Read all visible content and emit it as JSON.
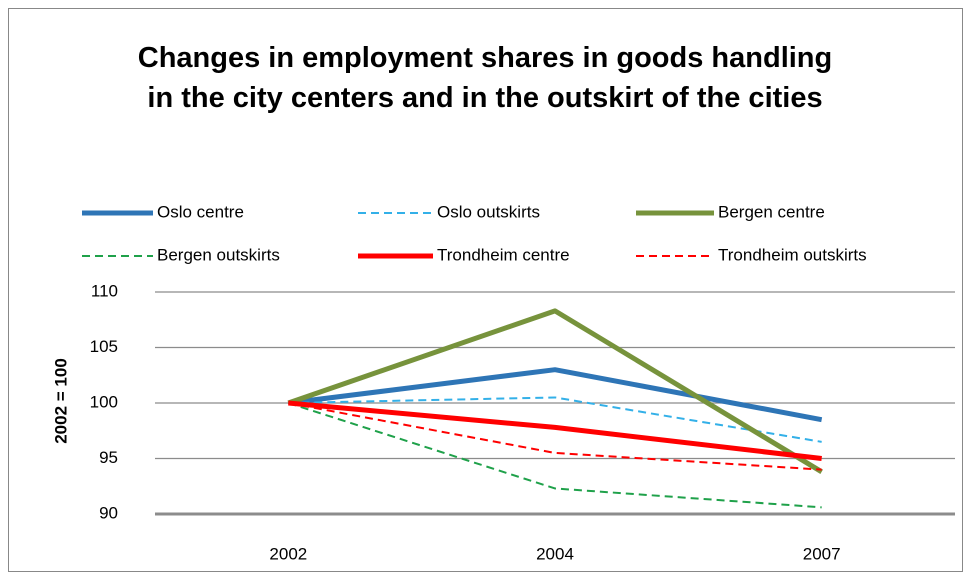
{
  "chart_data": {
    "type": "line",
    "title": "Changes in employment shares in goods handling in the city centers and in the outskirt of the cities",
    "y_label": "2002 = 100",
    "categories": [
      "2002",
      "2004",
      "2007"
    ],
    "series": [
      {
        "name": "Oslo centre",
        "color": "#2e75b6",
        "dash": false,
        "values": [
          100,
          103,
          98.5
        ]
      },
      {
        "name": "Oslo outskirts",
        "color": "#33b0e8",
        "dash": true,
        "values": [
          100,
          100.5,
          96.5
        ]
      },
      {
        "name": "Bergen centre",
        "color": "#77933c",
        "dash": false,
        "values": [
          100,
          108.3,
          93.8
        ]
      },
      {
        "name": "Bergen outskirts",
        "color": "#1fa14a",
        "dash": true,
        "values": [
          100,
          92.3,
          90.6
        ]
      },
      {
        "name": "Trondheim centre",
        "color": "#ff0000",
        "dash": false,
        "values": [
          100,
          97.8,
          95
        ]
      },
      {
        "name": "Trondheim outskirts",
        "color": "#ff0000",
        "dash": true,
        "values": [
          100,
          95.5,
          94
        ]
      }
    ],
    "ylim": [
      90,
      110
    ],
    "yticks": [
      90,
      95,
      100,
      105,
      110
    ],
    "grid": true,
    "legend": "top"
  }
}
